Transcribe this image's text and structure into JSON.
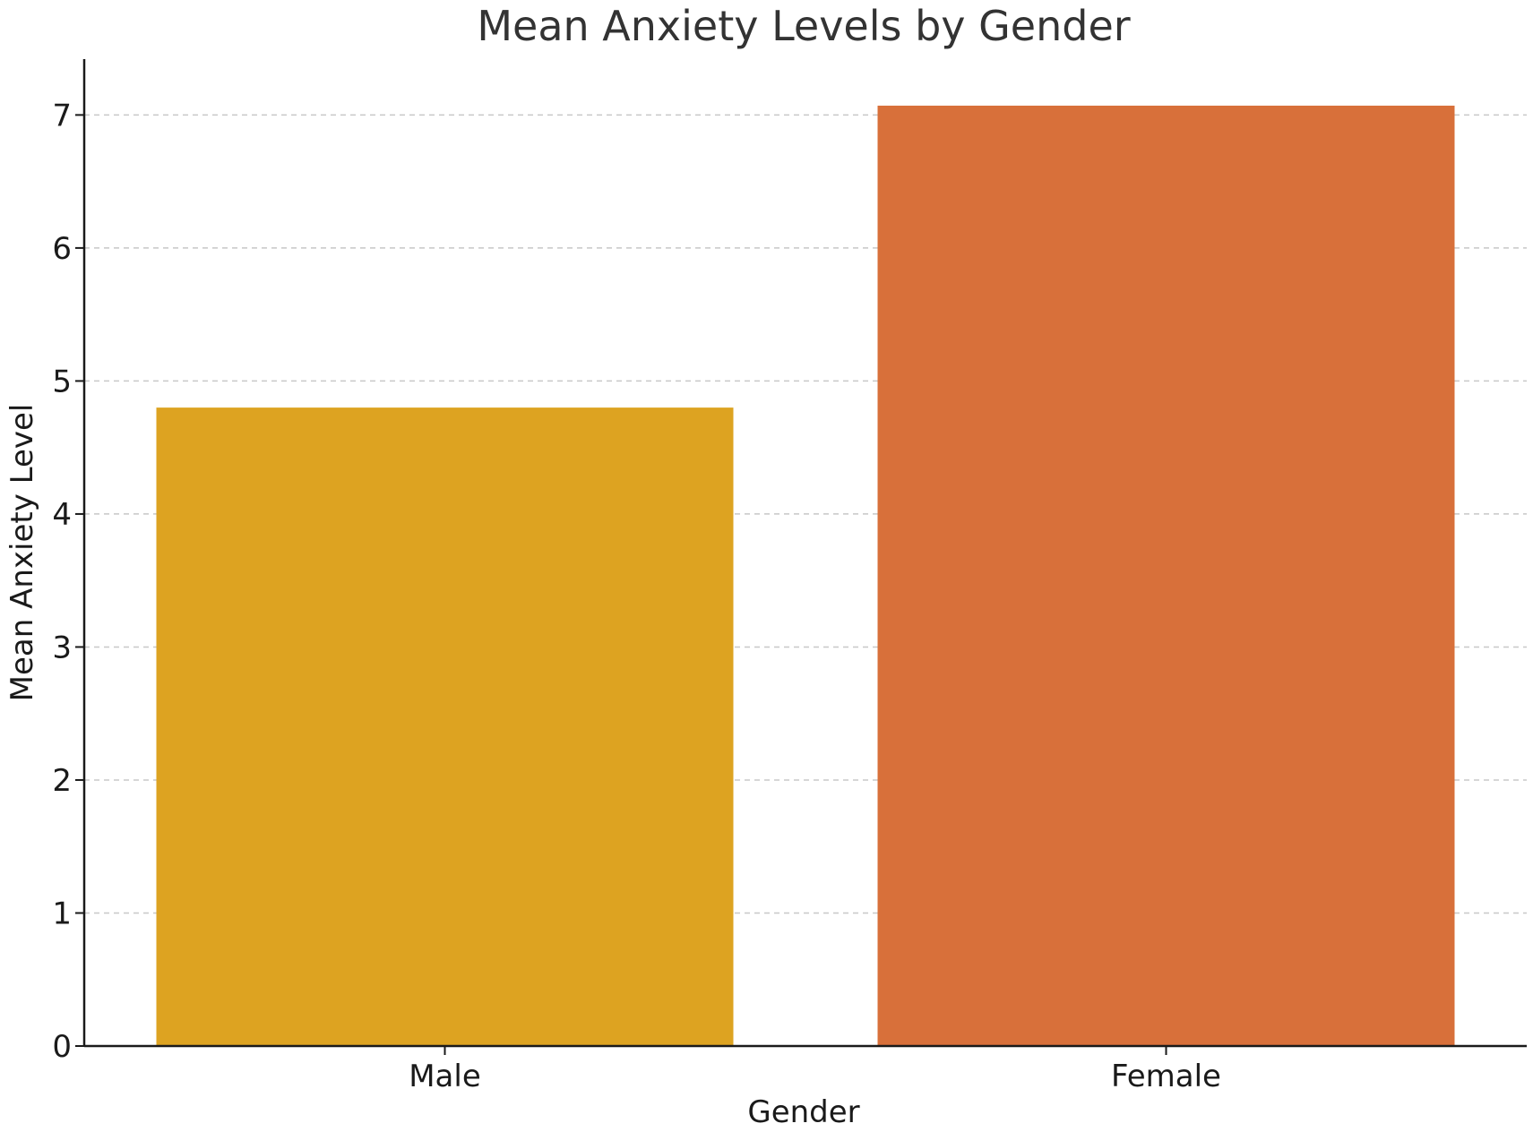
{
  "chart_data": {
    "type": "bar",
    "title": "Mean Anxiety Levels by Gender",
    "xlabel": "Gender",
    "ylabel": "Mean Anxiety Level",
    "categories": [
      "Male",
      "Female"
    ],
    "values": [
      4.8,
      7.07
    ],
    "colors": [
      "#DDA321",
      "#D8703A"
    ],
    "ylim": [
      0,
      7.42
    ],
    "yticks": [
      0,
      1,
      2,
      3,
      4,
      5,
      6,
      7
    ],
    "grid": "y-dashed",
    "legend": "none"
  }
}
